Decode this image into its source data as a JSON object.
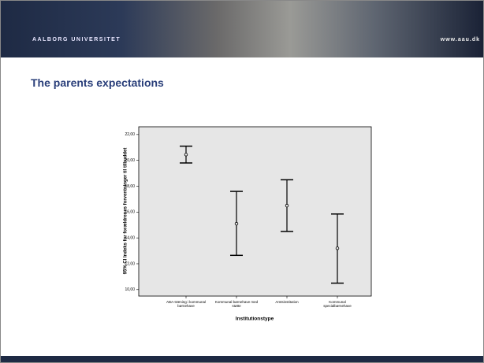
{
  "header": {
    "logo": "AALBORG UNIVERSITET",
    "url": "www.aau.dk"
  },
  "slide_title": "The parents expectations",
  "chart_data": {
    "type": "errorbar",
    "y_label": "95% CI Indeks for forældrenes forventninger til tilbuddet",
    "x_label": "Institutionstype",
    "categories": [
      "ABA-træning i kommunal børnehave",
      "Kommunal børnehave med støtte",
      "Amtsinstitution",
      "Kommunal specialbørnehave"
    ],
    "values": [
      20.45,
      15.1,
      16.5,
      13.2
    ],
    "lower": [
      19.8,
      12.65,
      14.5,
      10.5
    ],
    "upper": [
      21.1,
      17.6,
      18.5,
      15.85
    ],
    "color": "#000000",
    "ylim": [
      9.5,
      22.6
    ],
    "yticks": [
      {
        "value": 10,
        "label": "10,00"
      },
      {
        "value": 12,
        "label": "12,00"
      },
      {
        "value": 14,
        "label": "14,00"
      },
      {
        "value": 16,
        "label": "16,00"
      },
      {
        "value": 18,
        "label": "18,00"
      },
      {
        "value": 20,
        "label": "20,00"
      },
      {
        "value": 22,
        "label": "22,00"
      }
    ]
  }
}
